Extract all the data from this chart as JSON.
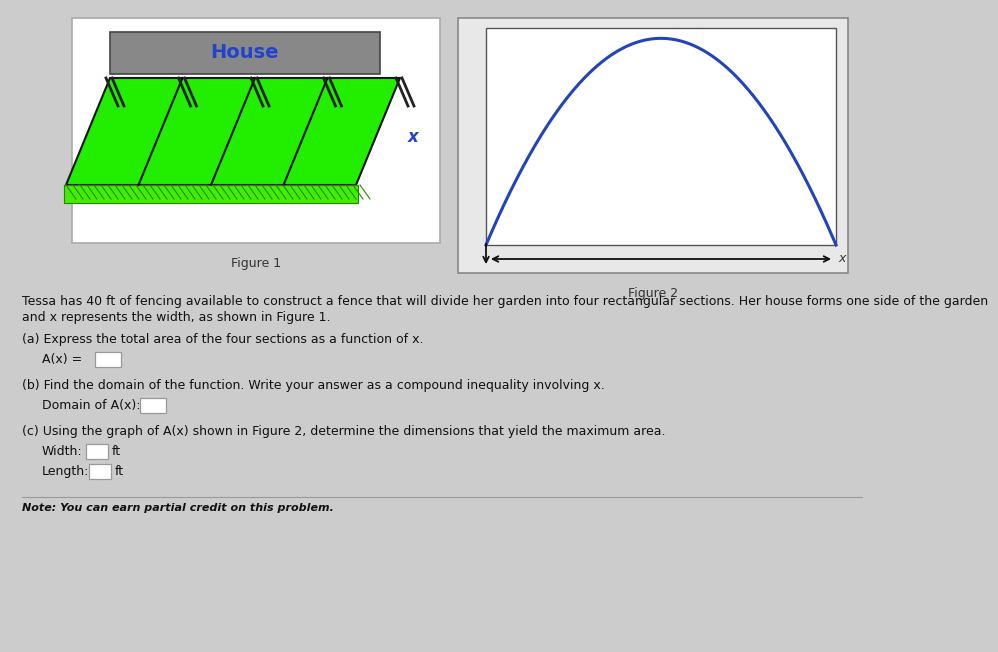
{
  "bg_color": "#cccccc",
  "fig1_box_bg": "#ffffff",
  "fig1_box_border": "#aaaaaa",
  "house_color": "#888888",
  "house_border": "#444444",
  "house_text": "House",
  "house_text_color": "#2244cc",
  "garden_color": "#22ee00",
  "garden_border": "#111111",
  "x_label": "x",
  "x_label_color": "#2244cc",
  "fig2_box_bg": "#e8e8e8",
  "fig2_box_border": "#888888",
  "graph_bg": "#f4f4f4",
  "graph_border": "#555555",
  "parabola_color": "#2244bb",
  "parabola_lw": 2.2,
  "arrow_color": "#111111",
  "fig1_label": "Figure 1",
  "fig2_label": "Figure 2",
  "text_color": "#111111",
  "text_color2": "#333333",
  "problem_line1": "Tessa has 40 ft of fencing available to construct a fence that will divide her garden into four rectangular sections. Her house forms one side of the garden",
  "problem_line2": "and x represents the width, as shown in Figure 1.",
  "part_a_label": "(a) Express the total area of the four sections as a function of x.",
  "part_a_eq": "A(x) =",
  "part_b_label": "(b) Find the domain of the function. Write your answer as a compound inequality involving x.",
  "part_b_eq": "Domain of A(x):",
  "part_c_label": "(c) Using the graph of A(x) shown in Figure 2, determine the dimensions that yield the maximum area.",
  "width_label": "Width:",
  "width_unit": "ft",
  "length_label": "Length:",
  "length_unit": "ft",
  "note_text": "Note: You can earn partial credit on this problem.",
  "fs_body": 9.0,
  "fs_small": 8.0,
  "fs_label": 9.5,
  "fs_fig_label": 9.0
}
